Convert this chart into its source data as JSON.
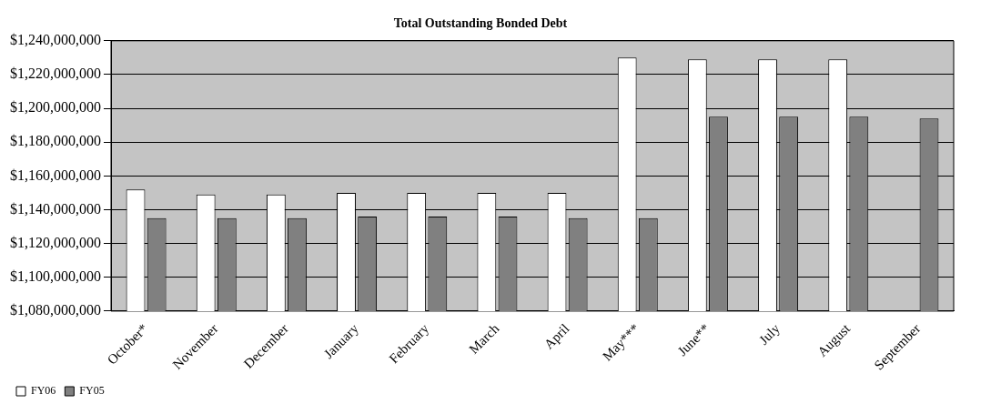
{
  "chart_data": {
    "type": "bar",
    "title": "Total Outstanding Bonded Debt",
    "categories": [
      "October*",
      "November",
      "December",
      "January",
      "February",
      "March",
      "April",
      "May***",
      "June**",
      "July",
      "August",
      "September"
    ],
    "series": [
      {
        "name": "FY06",
        "color": "#ffffff",
        "values": [
          1152000000,
          1149000000,
          1149000000,
          1150000000,
          1150000000,
          1150000000,
          1150000000,
          1230000000,
          1229000000,
          1229000000,
          1229000000,
          null
        ]
      },
      {
        "name": "FY05",
        "color": "#808080",
        "values": [
          1135000000,
          1135000000,
          1135000000,
          1136000000,
          1136000000,
          1136000000,
          1135000000,
          1135000000,
          1195000000,
          1195000000,
          1195000000,
          1194000000
        ]
      }
    ],
    "ylim": [
      1080000000,
      1240000000
    ],
    "yticks": [
      {
        "value": 1080000000,
        "label": "$1,080,000,000"
      },
      {
        "value": 1100000000,
        "label": "$1,100,000,000"
      },
      {
        "value": 1120000000,
        "label": "$1,120,000,000"
      },
      {
        "value": 1140000000,
        "label": "$1,140,000,000"
      },
      {
        "value": 1160000000,
        "label": "$1,160,000,000"
      },
      {
        "value": 1180000000,
        "label": "$1,180,000,000"
      },
      {
        "value": 1200000000,
        "label": "$1,200,000,000"
      },
      {
        "value": 1220000000,
        "label": "$1,220,000,000"
      },
      {
        "value": 1240000000,
        "label": "$1,240,000,000"
      }
    ],
    "grid": "y",
    "legend": "bottom left"
  }
}
